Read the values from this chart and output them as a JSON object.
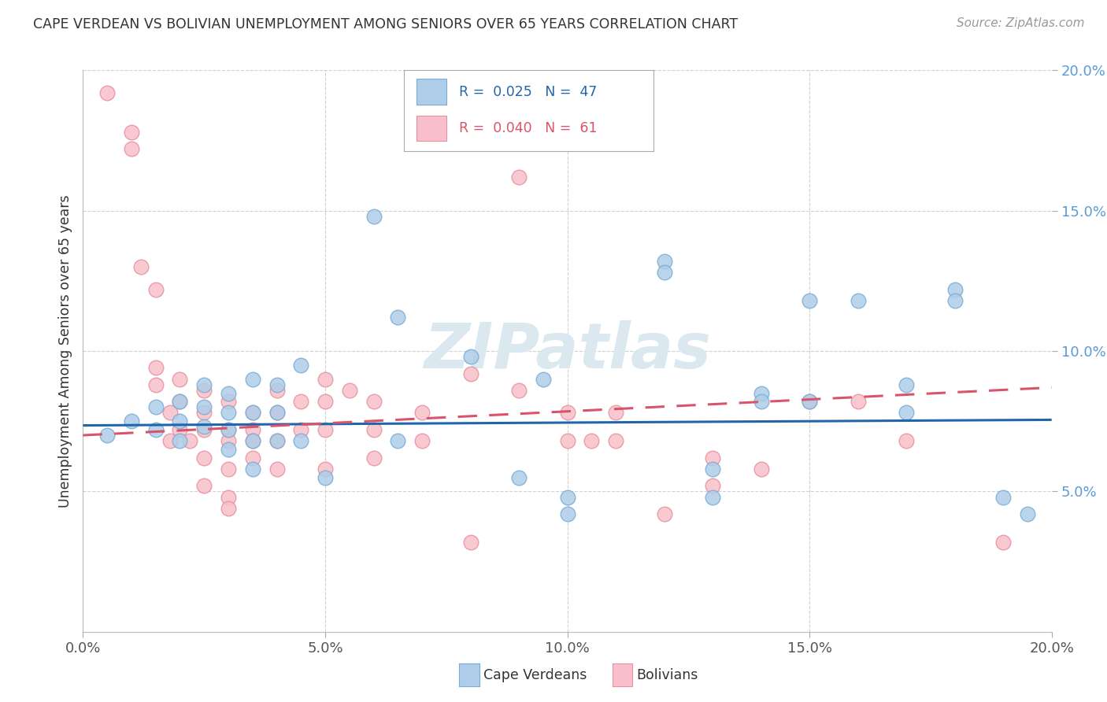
{
  "title": "CAPE VERDEAN VS BOLIVIAN UNEMPLOYMENT AMONG SENIORS OVER 65 YEARS CORRELATION CHART",
  "source": "Source: ZipAtlas.com",
  "ylabel": "Unemployment Among Seniors over 65 years",
  "xlim": [
    0.0,
    0.2
  ],
  "ylim": [
    0.0,
    0.2
  ],
  "xtick_values": [
    0.0,
    0.05,
    0.1,
    0.15,
    0.2
  ],
  "xtick_labels": [
    "0.0%",
    "5.0%",
    "10.0%",
    "15.0%",
    "20.0%"
  ],
  "ytick_values": [
    0.05,
    0.1,
    0.15,
    0.2
  ],
  "ytick_labels": [
    "5.0%",
    "10.0%",
    "15.0%",
    "20.0%"
  ],
  "cape_verdean_color": "#aecde8",
  "bolivian_color": "#f9c0cb",
  "cv_edge_color": "#7badd4",
  "bol_edge_color": "#e8909e",
  "cv_line_color": "#2166ac",
  "bol_line_color": "#d9546a",
  "watermark": "ZIPatlas",
  "watermark_color": "#dce8f0",
  "background_color": "#ffffff",
  "grid_color": "#d0d0d0",
  "cv_trend": [
    0.0735,
    0.0755
  ],
  "bol_trend": [
    0.07,
    0.087
  ],
  "cape_verdean_points": [
    [
      0.005,
      0.07
    ],
    [
      0.01,
      0.075
    ],
    [
      0.015,
      0.08
    ],
    [
      0.015,
      0.072
    ],
    [
      0.02,
      0.082
    ],
    [
      0.02,
      0.075
    ],
    [
      0.02,
      0.068
    ],
    [
      0.025,
      0.088
    ],
    [
      0.025,
      0.08
    ],
    [
      0.025,
      0.073
    ],
    [
      0.03,
      0.085
    ],
    [
      0.03,
      0.078
    ],
    [
      0.03,
      0.072
    ],
    [
      0.03,
      0.065
    ],
    [
      0.035,
      0.09
    ],
    [
      0.035,
      0.078
    ],
    [
      0.035,
      0.068
    ],
    [
      0.035,
      0.058
    ],
    [
      0.04,
      0.088
    ],
    [
      0.04,
      0.078
    ],
    [
      0.04,
      0.068
    ],
    [
      0.045,
      0.095
    ],
    [
      0.045,
      0.068
    ],
    [
      0.05,
      0.055
    ],
    [
      0.06,
      0.148
    ],
    [
      0.065,
      0.112
    ],
    [
      0.065,
      0.068
    ],
    [
      0.08,
      0.098
    ],
    [
      0.09,
      0.055
    ],
    [
      0.095,
      0.09
    ],
    [
      0.1,
      0.048
    ],
    [
      0.1,
      0.042
    ],
    [
      0.12,
      0.132
    ],
    [
      0.12,
      0.128
    ],
    [
      0.13,
      0.058
    ],
    [
      0.13,
      0.048
    ],
    [
      0.14,
      0.085
    ],
    [
      0.14,
      0.082
    ],
    [
      0.15,
      0.118
    ],
    [
      0.15,
      0.082
    ],
    [
      0.16,
      0.118
    ],
    [
      0.17,
      0.088
    ],
    [
      0.17,
      0.078
    ],
    [
      0.18,
      0.122
    ],
    [
      0.18,
      0.118
    ],
    [
      0.19,
      0.048
    ],
    [
      0.195,
      0.042
    ]
  ],
  "bolivian_points": [
    [
      0.005,
      0.192
    ],
    [
      0.01,
      0.178
    ],
    [
      0.01,
      0.172
    ],
    [
      0.012,
      0.13
    ],
    [
      0.015,
      0.122
    ],
    [
      0.015,
      0.094
    ],
    [
      0.015,
      0.088
    ],
    [
      0.018,
      0.078
    ],
    [
      0.018,
      0.068
    ],
    [
      0.02,
      0.09
    ],
    [
      0.02,
      0.082
    ],
    [
      0.02,
      0.072
    ],
    [
      0.022,
      0.068
    ],
    [
      0.025,
      0.086
    ],
    [
      0.025,
      0.078
    ],
    [
      0.025,
      0.072
    ],
    [
      0.025,
      0.062
    ],
    [
      0.025,
      0.052
    ],
    [
      0.03,
      0.082
    ],
    [
      0.03,
      0.072
    ],
    [
      0.03,
      0.068
    ],
    [
      0.03,
      0.058
    ],
    [
      0.03,
      0.048
    ],
    [
      0.03,
      0.044
    ],
    [
      0.035,
      0.078
    ],
    [
      0.035,
      0.072
    ],
    [
      0.035,
      0.068
    ],
    [
      0.035,
      0.062
    ],
    [
      0.04,
      0.086
    ],
    [
      0.04,
      0.078
    ],
    [
      0.04,
      0.068
    ],
    [
      0.04,
      0.058
    ],
    [
      0.045,
      0.082
    ],
    [
      0.045,
      0.072
    ],
    [
      0.05,
      0.09
    ],
    [
      0.05,
      0.082
    ],
    [
      0.05,
      0.072
    ],
    [
      0.05,
      0.058
    ],
    [
      0.055,
      0.086
    ],
    [
      0.06,
      0.082
    ],
    [
      0.06,
      0.072
    ],
    [
      0.06,
      0.062
    ],
    [
      0.07,
      0.078
    ],
    [
      0.07,
      0.068
    ],
    [
      0.08,
      0.092
    ],
    [
      0.08,
      0.032
    ],
    [
      0.09,
      0.162
    ],
    [
      0.09,
      0.086
    ],
    [
      0.1,
      0.078
    ],
    [
      0.1,
      0.068
    ],
    [
      0.105,
      0.068
    ],
    [
      0.11,
      0.078
    ],
    [
      0.11,
      0.068
    ],
    [
      0.12,
      0.042
    ],
    [
      0.13,
      0.062
    ],
    [
      0.13,
      0.052
    ],
    [
      0.14,
      0.058
    ],
    [
      0.15,
      0.082
    ],
    [
      0.16,
      0.082
    ],
    [
      0.17,
      0.068
    ],
    [
      0.19,
      0.032
    ]
  ]
}
